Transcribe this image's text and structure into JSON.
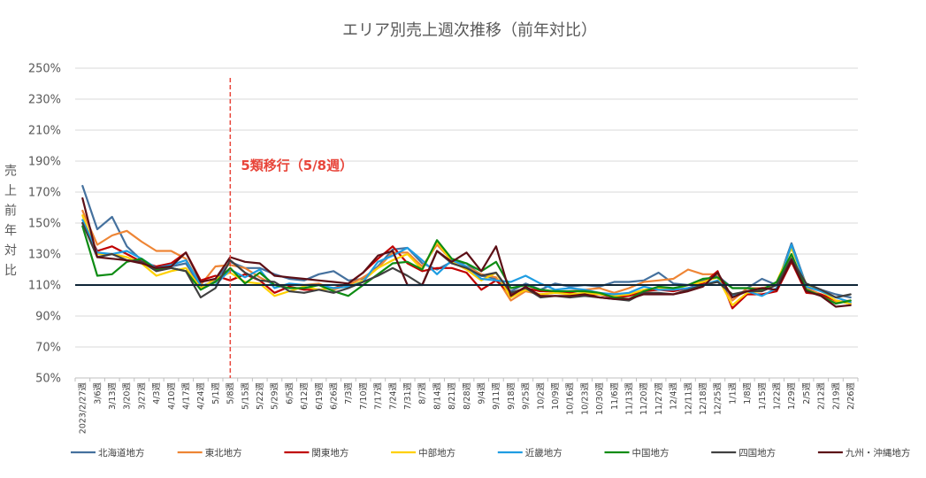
{
  "chart_data": {
    "type": "line",
    "title": "エリア別売上週次推移（前年対比）",
    "ylabel": "売上前年対比",
    "ylim": [
      50,
      250
    ],
    "grid": true,
    "legend_position": "bottom",
    "y_ticks": [
      {
        "value": 250,
        "label": "250%"
      },
      {
        "value": 230,
        "label": "230%"
      },
      {
        "value": 210,
        "label": "210%"
      },
      {
        "value": 190,
        "label": "190%"
      },
      {
        "value": 170,
        "label": "170%"
      },
      {
        "value": 150,
        "label": "150%"
      },
      {
        "value": 130,
        "label": "130%"
      },
      {
        "value": 110,
        "label": "110%"
      },
      {
        "value": 90,
        "label": "90%"
      },
      {
        "value": 70,
        "label": "70%"
      },
      {
        "value": 50,
        "label": "50%"
      }
    ],
    "categories": [
      "2023/2/27週",
      "3/6週",
      "3/13週",
      "3/20週",
      "3/27週",
      "4/3週",
      "4/10週",
      "4/17週",
      "4/24週",
      "5/1週",
      "5/8週",
      "5/15週",
      "5/22週",
      "5/29週",
      "6/5週",
      "6/12週",
      "6/19週",
      "6/26週",
      "7/3週",
      "7/10週",
      "7/17週",
      "7/24週",
      "7/31週",
      "8/7週",
      "8/14週",
      "8/21週",
      "8/28週",
      "9/4週",
      "9/11週",
      "9/18週",
      "9/25週",
      "10/2週",
      "10/9週",
      "10/16週",
      "10/23週",
      "10/30週",
      "11/6週",
      "11/13週",
      "11/20週",
      "11/27週",
      "12/4週",
      "12/11週",
      "12/18週",
      "12/25週",
      "1/1週",
      "1/8週",
      "1/15週",
      "1/22週",
      "1/29週",
      "2/5週",
      "2/12週",
      "2/19週",
      "2/26週"
    ],
    "series": [
      {
        "name": "北海道地方",
        "color": "#45719e",
        "values": [
          174,
          146,
          154,
          135,
          126,
          120,
          122,
          124,
          109,
          113,
          125,
          121,
          121,
          117,
          114,
          113,
          117,
          119,
          113,
          114,
          122,
          133,
          134,
          124,
          120,
          125,
          124,
          116,
          114,
          106,
          111,
          107,
          111,
          109,
          110,
          109,
          112,
          112,
          113,
          118,
          111,
          110,
          113,
          116,
          108,
          108,
          114,
          110,
          137,
          110,
          107,
          104,
          102
        ]
      },
      {
        "name": "東北地方",
        "color": "#ee8535",
        "values": [
          158,
          136,
          142,
          145,
          138,
          132,
          132,
          127,
          110,
          122,
          123,
          121,
          115,
          110,
          110,
          110,
          111,
          107,
          110,
          115,
          121,
          131,
          131,
          122,
          136,
          126,
          122,
          117,
          115,
          100,
          106,
          104,
          105,
          106,
          107,
          108,
          105,
          108,
          112,
          113,
          114,
          120,
          117,
          117,
          100,
          108,
          108,
          110,
          128,
          108,
          104,
          99,
          100
        ]
      },
      {
        "name": "関東地方",
        "color": "#c00000",
        "values": [
          150,
          132,
          135,
          130,
          125,
          122,
          124,
          131,
          113,
          116,
          113,
          117,
          113,
          105,
          109,
          107,
          107,
          108,
          111,
          118,
          127,
          135,
          124,
          119,
          121,
          121,
          118,
          107,
          113,
          104,
          108,
          106,
          106,
          105,
          104,
          104,
          102,
          103,
          106,
          107,
          106,
          108,
          111,
          119,
          95,
          104,
          104,
          106,
          125,
          105,
          104,
          100,
          98
        ]
      },
      {
        "name": "中部地方",
        "color": "#ffd000",
        "values": [
          155,
          130,
          130,
          128,
          124,
          116,
          119,
          121,
          108,
          114,
          118,
          112,
          111,
          103,
          106,
          109,
          107,
          108,
          109,
          113,
          121,
          126,
          130,
          120,
          138,
          125,
          120,
          113,
          118,
          102,
          107,
          104,
          105,
          104,
          105,
          104,
          103,
          104,
          107,
          108,
          107,
          110,
          112,
          115,
          97,
          105,
          106,
          112,
          134,
          110,
          106,
          100,
          98
        ]
      },
      {
        "name": "近畿地方",
        "color": "#1f9de2",
        "values": [
          152,
          131,
          130,
          132,
          127,
          121,
          123,
          126,
          110,
          110,
          120,
          115,
          120,
          108,
          111,
          110,
          110,
          108,
          109,
          112,
          125,
          129,
          134,
          126,
          117,
          126,
          122,
          114,
          113,
          112,
          116,
          111,
          107,
          108,
          107,
          105,
          104,
          105,
          109,
          107,
          107,
          108,
          110,
          113,
          103,
          106,
          103,
          108,
          136,
          109,
          106,
          102,
          99
        ]
      },
      {
        "name": "中国地方",
        "color": "#0e8c14",
        "values": [
          148,
          116,
          117,
          125,
          127,
          120,
          121,
          119,
          107,
          112,
          121,
          111,
          118,
          110,
          108,
          108,
          110,
          106,
          103,
          110,
          117,
          124,
          125,
          120,
          139,
          127,
          124,
          119,
          125,
          108,
          110,
          107,
          106,
          106,
          106,
          105,
          102,
          101,
          106,
          109,
          108,
          110,
          114,
          115,
          108,
          108,
          107,
          112,
          130,
          107,
          103,
          98,
          100
        ]
      },
      {
        "name": "四国地方",
        "color": "#404040",
        "values": [
          150,
          128,
          130,
          126,
          125,
          119,
          121,
          119,
          102,
          108,
          126,
          118,
          113,
          112,
          106,
          105,
          107,
          105,
          108,
          112,
          116,
          121,
          116,
          110,
          132,
          124,
          121,
          116,
          118,
          105,
          108,
          102,
          103,
          102,
          103,
          102,
          101,
          100,
          105,
          105,
          104,
          107,
          110,
          112,
          104,
          106,
          106,
          110,
          127,
          111,
          107,
          102,
          104
        ]
      },
      {
        "name": "九州・沖縄地方",
        "color": "#5c0f16",
        "values": [
          166,
          128,
          127,
          126,
          124,
          121,
          122,
          131,
          112,
          114,
          128,
          125,
          124,
          116,
          115,
          114,
          113,
          112,
          111,
          118,
          129,
          132,
          110,
          110,
          132,
          125,
          131,
          119,
          135,
          103,
          109,
          103,
          103,
          103,
          104,
          102,
          101,
          101,
          104,
          104,
          104,
          106,
          109,
          118,
          102,
          106,
          108,
          107,
          126,
          106,
          103,
          96,
          97
        ]
      }
    ],
    "reference_line": {
      "y": 110,
      "color": "#0f2536"
    },
    "marker": {
      "x_index": 10,
      "label": "5類移行（5/8週）",
      "color": "#e8463b"
    }
  }
}
